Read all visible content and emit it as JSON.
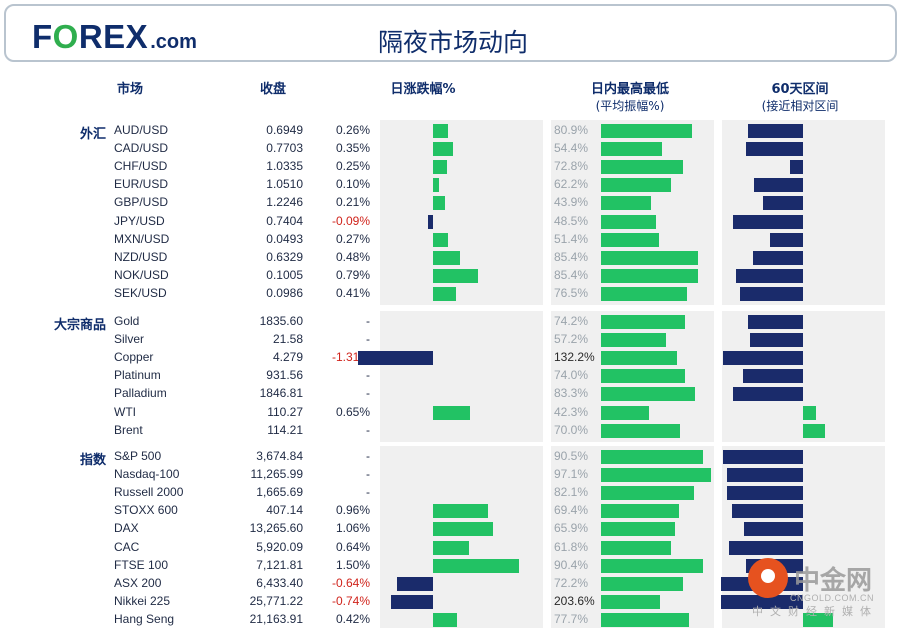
{
  "header": {
    "logo_pre": "F",
    "logo_o": "O",
    "logo_post": "REX",
    "logo_com": ".com",
    "title": "隔夜市场动向"
  },
  "columns": {
    "market": "市场",
    "close": "收盘",
    "daily_change": "日涨跌幅%",
    "intraday": "日内最高最低",
    "intraday_sub": "(平均振幅%)",
    "range60": "60天区间",
    "range60_sub": "(接近相对区间"
  },
  "colors": {
    "green": "#22c264",
    "navy": "#1a2b6b",
    "negative": "#d0231b",
    "panel": "#f0f0f0",
    "brand": "#0f2d6b"
  },
  "chart_data": {
    "type": "table",
    "groups": [
      {
        "label": "外汇",
        "rows": [
          {
            "name": "AUD/USD",
            "close": "0.6949",
            "change": "0.26%",
            "change_value": 0.26,
            "range_label": "80.9%",
            "range_value": 80.9,
            "pos60": -0.55
          },
          {
            "name": "CAD/USD",
            "close": "0.7703",
            "change": "0.35%",
            "change_value": 0.35,
            "range_label": "54.4%",
            "range_value": 54.4,
            "pos60": -0.57
          },
          {
            "name": "CHF/USD",
            "close": "1.0335",
            "change": "0.25%",
            "change_value": 0.25,
            "range_label": "72.8%",
            "range_value": 72.8,
            "pos60": -0.13
          },
          {
            "name": "EUR/USD",
            "close": "1.0510",
            "change": "0.10%",
            "change_value": 0.1,
            "range_label": "62.2%",
            "range_value": 62.2,
            "pos60": -0.49
          },
          {
            "name": "GBP/USD",
            "close": "1.2246",
            "change": "0.21%",
            "change_value": 0.21,
            "range_label": "43.9%",
            "range_value": 43.9,
            "pos60": -0.4
          },
          {
            "name": "JPY/USD",
            "close": "0.7404",
            "change": "-0.09%",
            "change_value": -0.09,
            "range_label": "48.5%",
            "range_value": 48.5,
            "pos60": -0.7
          },
          {
            "name": "MXN/USD",
            "close": "0.0493",
            "change": "0.27%",
            "change_value": 0.27,
            "range_label": "51.4%",
            "range_value": 51.4,
            "pos60": -0.33
          },
          {
            "name": "NZD/USD",
            "close": "0.6329",
            "change": "0.48%",
            "change_value": 0.48,
            "range_label": "85.4%",
            "range_value": 85.4,
            "pos60": -0.5
          },
          {
            "name": "NOK/USD",
            "close": "0.1005",
            "change": "0.79%",
            "change_value": 0.79,
            "range_label": "85.4%",
            "range_value": 85.4,
            "pos60": -0.67
          },
          {
            "name": "SEK/USD",
            "close": "0.0986",
            "change": "0.41%",
            "change_value": 0.41,
            "range_label": "76.5%",
            "range_value": 76.5,
            "pos60": -0.63
          }
        ]
      },
      {
        "label": "大宗商品",
        "rows": [
          {
            "name": "Gold",
            "close": "1835.60",
            "change": "-",
            "change_value": 0,
            "range_label": "74.2%",
            "range_value": 74.2,
            "pos60": -0.55
          },
          {
            "name": "Silver",
            "close": "21.58",
            "change": "-",
            "change_value": 0,
            "range_label": "57.2%",
            "range_value": 57.2,
            "pos60": -0.53
          },
          {
            "name": "Copper",
            "close": "4.279",
            "change": "-1.31%",
            "change_value": -1.31,
            "range_label": "132.2%",
            "range_value": 132.2,
            "pos60": -0.8
          },
          {
            "name": "Platinum",
            "close": "931.56",
            "change": "-",
            "change_value": 0,
            "range_label": "74.0%",
            "range_value": 74.0,
            "pos60": -0.6
          },
          {
            "name": "Palladium",
            "close": "1846.81",
            "change": "-",
            "change_value": 0,
            "range_label": "83.3%",
            "range_value": 83.3,
            "pos60": -0.7
          },
          {
            "name": "WTI",
            "close": "110.27",
            "change": "0.65%",
            "change_value": 0.65,
            "range_label": "42.3%",
            "range_value": 42.3,
            "pos60": 0.13
          },
          {
            "name": "Brent",
            "close": "114.21",
            "change": "-",
            "change_value": 0,
            "range_label": "70.0%",
            "range_value": 70.0,
            "pos60": 0.22
          }
        ]
      },
      {
        "label": "指数",
        "rows": [
          {
            "name": "S&P 500",
            "close": "3,674.84",
            "change": "-",
            "change_value": 0,
            "range_label": "90.5%",
            "range_value": 90.5,
            "pos60": -0.8
          },
          {
            "name": "Nasdaq-100",
            "close": "11,265.99",
            "change": "-",
            "change_value": 0,
            "range_label": "97.1%",
            "range_value": 97.1,
            "pos60": -0.76
          },
          {
            "name": "Russell 2000",
            "close": "1,665.69",
            "change": "-",
            "change_value": 0,
            "range_label": "82.1%",
            "range_value": 82.1,
            "pos60": -0.76
          },
          {
            "name": "STOXX 600",
            "close": "407.14",
            "change": "0.96%",
            "change_value": 0.96,
            "range_label": "69.4%",
            "range_value": 69.4,
            "pos60": -0.71
          },
          {
            "name": "DAX",
            "close": "13,265.60",
            "change": "1.06%",
            "change_value": 1.06,
            "range_label": "65.9%",
            "range_value": 65.9,
            "pos60": -0.59
          },
          {
            "name": "CAC",
            "close": "5,920.09",
            "change": "0.64%",
            "change_value": 0.64,
            "range_label": "61.8%",
            "range_value": 61.8,
            "pos60": -0.74
          },
          {
            "name": "FTSE 100",
            "close": "7,121.81",
            "change": "1.50%",
            "change_value": 1.5,
            "range_label": "90.4%",
            "range_value": 90.4,
            "pos60": -0.57
          },
          {
            "name": "ASX 200",
            "close": "6,433.40",
            "change": "-0.64%",
            "change_value": -0.64,
            "range_label": "72.2%",
            "range_value": 72.2,
            "pos60": -0.82
          },
          {
            "name": "Nikkei 225",
            "close": "25,771.22",
            "change": "-0.74%",
            "change_value": -0.74,
            "range_label": "203.6%",
            "range_value": 203.6,
            "pos60": -0.82
          },
          {
            "name": "Hang Seng",
            "close": "21,163.91",
            "change": "0.42%",
            "change_value": 0.42,
            "range_label": "77.7%",
            "range_value": 77.7,
            "pos60": 0.3
          }
        ]
      }
    ]
  },
  "watermark": {
    "name": "中金网",
    "url": "CNGOLD.COM.CN",
    "sub": "中文财经新媒体"
  }
}
